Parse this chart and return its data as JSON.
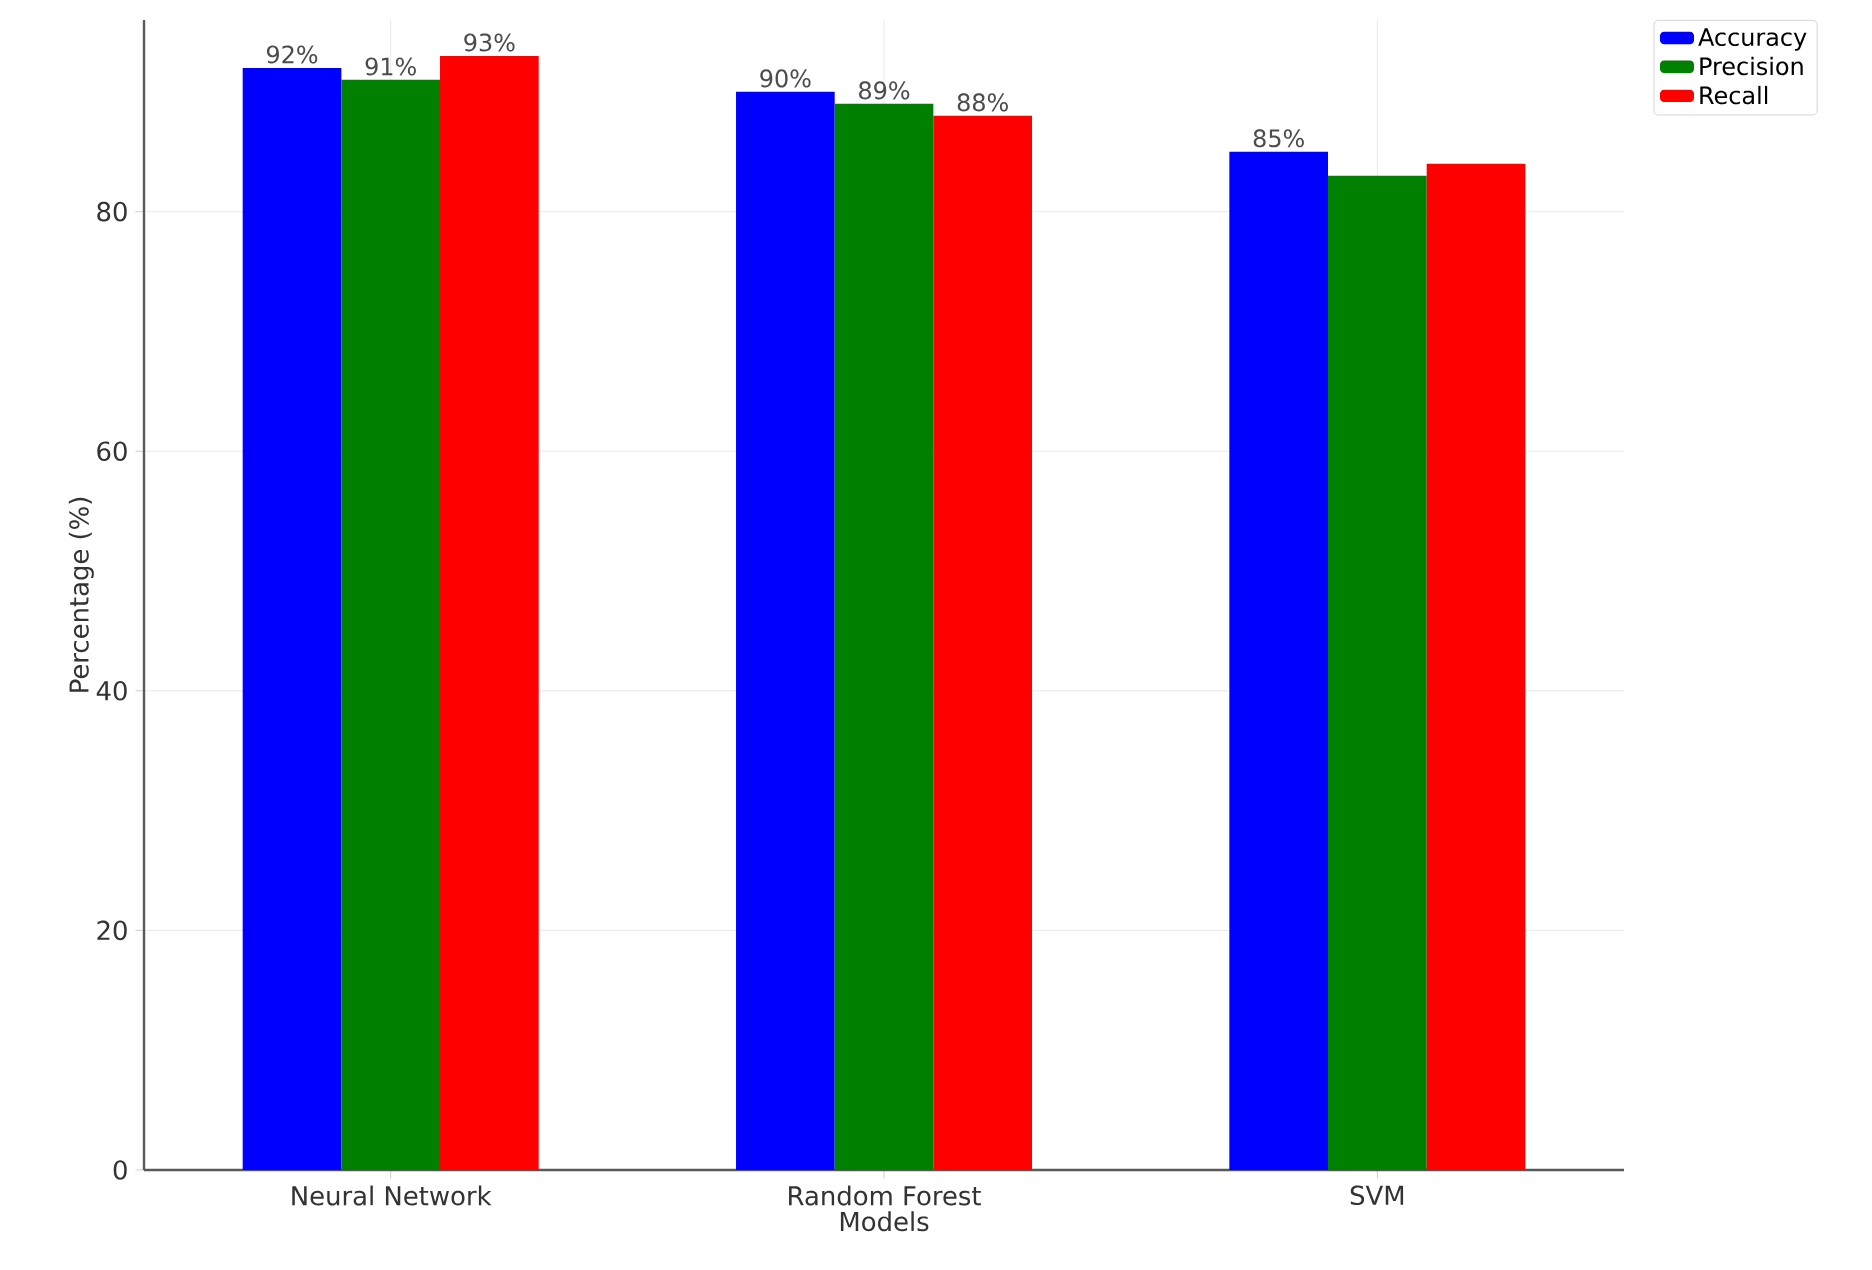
{
  "chart_data": {
    "type": "bar",
    "xlabel": "Models",
    "ylabel": "Percentage (%)",
    "categories": [
      "Neural Network",
      "Random Forest",
      "SVM"
    ],
    "series": [
      {
        "name": "Accuracy",
        "color": "#0000ff",
        "values": [
          92,
          90,
          85
        ],
        "value_labels": [
          "92%",
          "90%",
          "85%"
        ]
      },
      {
        "name": "Precision",
        "color": "#008000",
        "values": [
          91,
          89,
          83
        ],
        "value_labels": [
          "91%",
          "89%",
          null
        ]
      },
      {
        "name": "Recall",
        "color": "#ff0000",
        "values": [
          93,
          88,
          84
        ],
        "value_labels": [
          "93%",
          "88%",
          null
        ]
      }
    ],
    "ylim": [
      0,
      96
    ],
    "yticks": [
      0,
      20,
      40,
      60,
      80
    ],
    "grid": true,
    "legend": "top right"
  }
}
